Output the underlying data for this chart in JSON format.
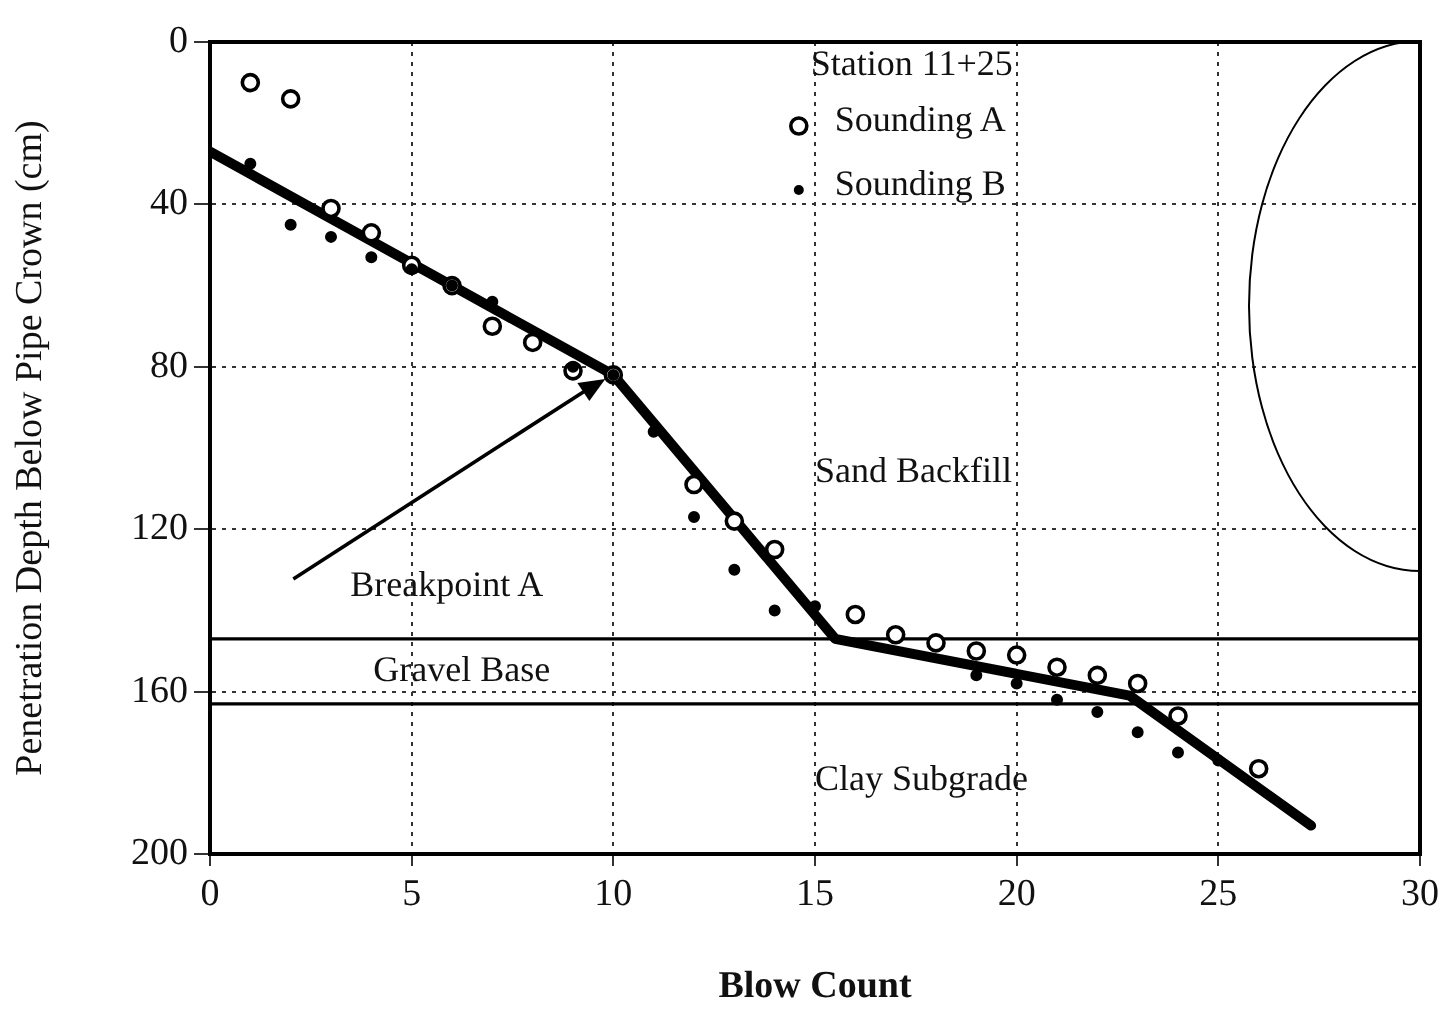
{
  "chart_data": {
    "type": "scatter",
    "xlabel": "Blow Count",
    "ylabel": "Penetration Depth Below Pipe Crown (cm)",
    "legend_title": "Station 11+25",
    "xlim": [
      0,
      30
    ],
    "xticks": [
      0,
      5,
      10,
      15,
      20,
      25,
      30
    ],
    "ylim": [
      200,
      0
    ],
    "yticks": [
      0,
      40,
      80,
      120,
      160,
      200
    ],
    "grid": true,
    "legend": "top right",
    "series": [
      {
        "name": "Sounding A",
        "type": "scatter",
        "marker": "circle",
        "color": "#000000",
        "x": [
          1,
          2,
          3,
          4,
          5,
          6,
          7,
          8,
          9,
          10,
          12,
          13,
          14,
          16,
          17,
          18,
          19,
          20,
          21,
          22,
          23,
          24,
          26
        ],
        "values": [
          10,
          14,
          41,
          47,
          55,
          60,
          70,
          74,
          81,
          82,
          109,
          118,
          125,
          141,
          146,
          148,
          150,
          151,
          154,
          156,
          158,
          166,
          179
        ]
      },
      {
        "name": "Sounding B",
        "type": "scatter",
        "marker": "circle",
        "color": "#000000",
        "x": [
          1,
          2,
          3,
          4,
          5,
          6,
          7,
          9,
          10,
          11,
          12,
          13,
          14,
          15,
          19,
          20,
          21,
          22,
          23,
          24,
          25
        ],
        "values": [
          30,
          45,
          48,
          53,
          56,
          60,
          64,
          80,
          82,
          96,
          117,
          130,
          140,
          139,
          156,
          158,
          162,
          165,
          170,
          175,
          177
        ]
      },
      {
        "type": "line",
        "marker": "none",
        "line_style": "solid",
        "color": "#000000",
        "x": [
          0,
          10,
          15.5,
          22.8,
          27.3
        ],
        "values": [
          27,
          82,
          147,
          161,
          193
        ]
      }
    ],
    "ref_lines": [
      {
        "axis": "y",
        "value": 147,
        "color": "#000000"
      },
      {
        "axis": "y",
        "value": 163,
        "color": "#000000"
      }
    ],
    "annotations": [
      "Breakpoint A",
      "Sand Backfill",
      "Clay Subgrade",
      "Gravel Base"
    ]
  }
}
